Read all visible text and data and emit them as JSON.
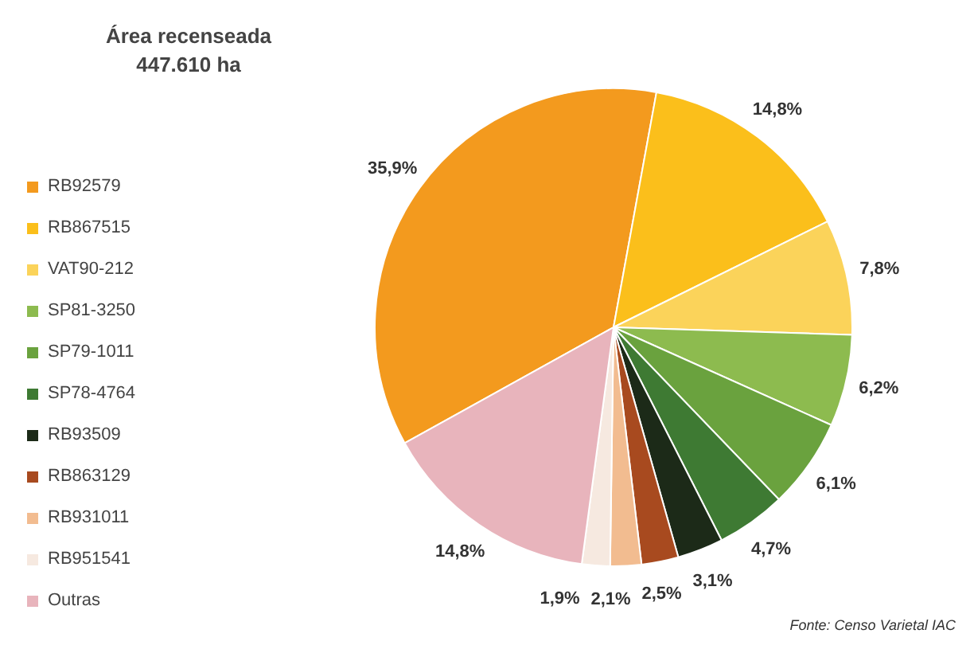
{
  "chart_data": {
    "type": "pie",
    "title": "Área recenseada",
    "subtitle": "447.610 ha",
    "categories": [
      "RB92579",
      "RB867515",
      "VAT90-212",
      "SP81-3250",
      "SP79-1011",
      "SP78-4764",
      "RB93509",
      "RB863129",
      "RB931011",
      "RB951541",
      "Outras"
    ],
    "values": [
      35.9,
      14.8,
      7.8,
      6.2,
      6.1,
      4.7,
      3.1,
      2.5,
      2.1,
      1.9,
      14.8
    ],
    "colors": [
      "#f39a1e",
      "#fbbf1b",
      "#fbd35a",
      "#8dbb4f",
      "#6aa23e",
      "#3e7a33",
      "#1c2a18",
      "#a84a1f",
      "#f2bc90",
      "#f6e9e0",
      "#e8b4bc"
    ],
    "value_labels": [
      "35,9%",
      "14,8%",
      "7,8%",
      "6,2%",
      "6,1%",
      "4,7%",
      "3,1%",
      "2,5%",
      "2,1%",
      "1,9%",
      "14,8%"
    ],
    "legend": "left",
    "annotations": [
      "Fonte: Censo Varietal IAC"
    ]
  }
}
